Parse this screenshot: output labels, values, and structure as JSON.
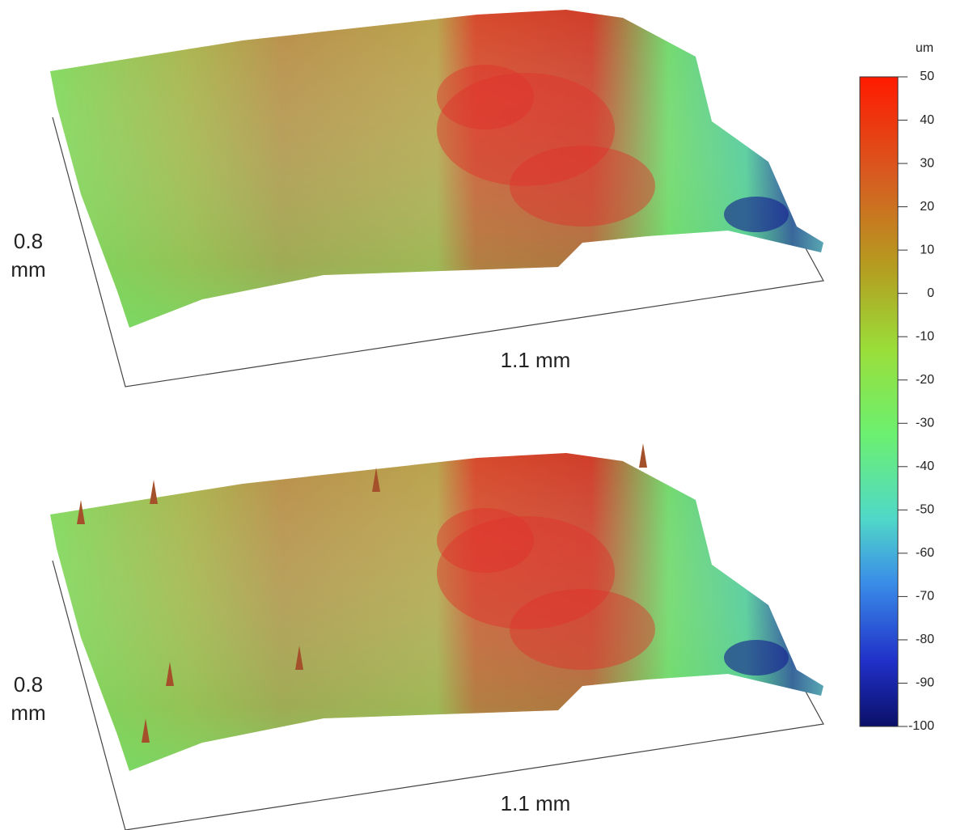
{
  "panels": [
    {
      "y_label": [
        "0.8",
        "mm"
      ],
      "x_label": "1.1 mm"
    },
    {
      "y_label": [
        "0.8",
        "mm"
      ],
      "x_label": "1.1 mm"
    }
  ],
  "colorbar": {
    "unit": "um",
    "lim": [
      -100,
      50
    ],
    "ticks": [
      50,
      40,
      30,
      20,
      10,
      0,
      -10,
      -20,
      -30,
      -40,
      -50,
      -60,
      -70,
      -80,
      -90,
      -100
    ]
  }
}
